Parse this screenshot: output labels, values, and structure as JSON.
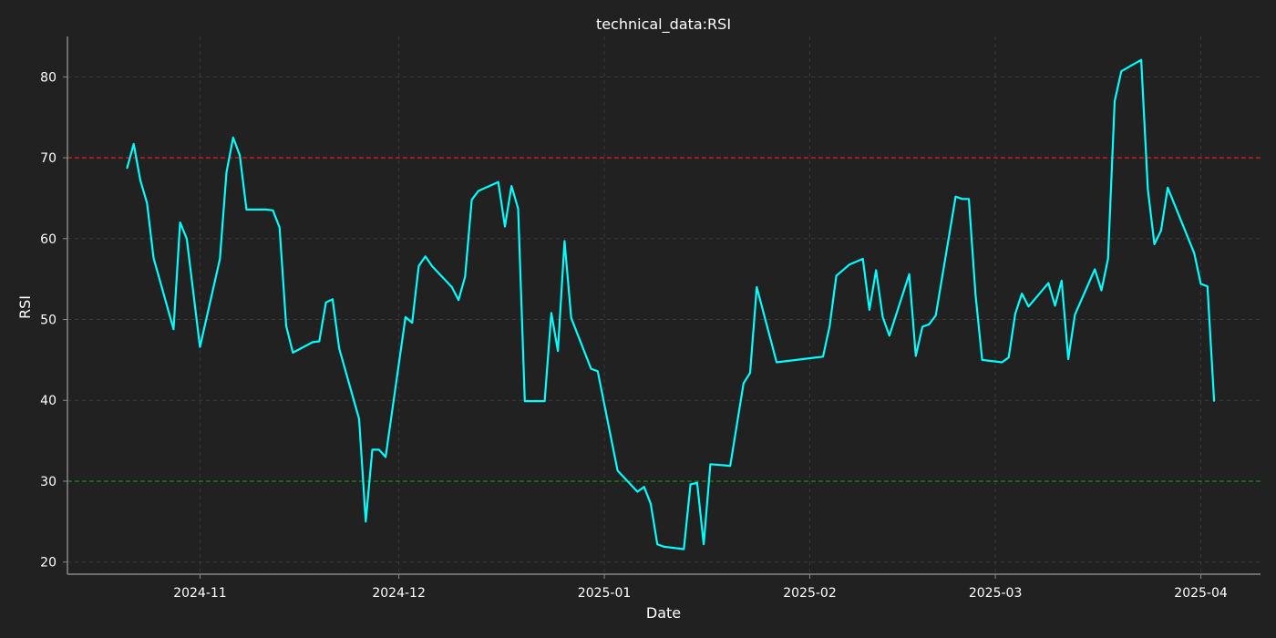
{
  "chart_data": {
    "type": "line",
    "title": "technical_data:RSI",
    "xlabel": "Date",
    "ylabel": "RSI",
    "x_ticks": [
      "2024-11",
      "2024-12",
      "2025-01",
      "2025-02",
      "2025-03",
      "2025-04"
    ],
    "y_ticks": [
      20,
      30,
      40,
      50,
      60,
      70,
      80
    ],
    "xlim": [
      "2024-10-12",
      "2025-04-10"
    ],
    "ylim": [
      18.5,
      85
    ],
    "grid": true,
    "reference_lines": [
      {
        "value": 70,
        "color": "#cc1f1f",
        "style": "dashed"
      },
      {
        "value": 30,
        "color": "#1f8a1f",
        "style": "dashed"
      }
    ],
    "series": [
      {
        "color": "#00ffff",
        "points": [
          [
            "2024-10-21",
            68.7
          ],
          [
            "2024-10-22",
            71.7
          ],
          [
            "2024-10-23",
            67.2
          ],
          [
            "2024-10-24",
            64.4
          ],
          [
            "2024-10-25",
            57.6
          ],
          [
            "2024-10-28",
            48.8
          ],
          [
            "2024-10-29",
            62.0
          ],
          [
            "2024-10-30",
            60.0
          ],
          [
            "2024-11-01",
            46.6
          ],
          [
            "2024-11-04",
            57.5
          ],
          [
            "2024-11-05",
            68.2
          ],
          [
            "2024-11-06",
            72.5
          ],
          [
            "2024-11-07",
            70.3
          ],
          [
            "2024-11-08",
            63.6
          ],
          [
            "2024-11-11",
            63.6
          ],
          [
            "2024-11-12",
            63.5
          ],
          [
            "2024-11-13",
            61.4
          ],
          [
            "2024-11-14",
            49.2
          ],
          [
            "2024-11-15",
            45.9
          ],
          [
            "2024-11-18",
            47.2
          ],
          [
            "2024-11-19",
            47.3
          ],
          [
            "2024-11-20",
            52.1
          ],
          [
            "2024-11-21",
            52.5
          ],
          [
            "2024-11-22",
            46.4
          ],
          [
            "2024-11-25",
            37.7
          ],
          [
            "2024-11-26",
            25.0
          ],
          [
            "2024-11-27",
            33.9
          ],
          [
            "2024-11-28",
            33.9
          ],
          [
            "2024-11-29",
            33.0
          ],
          [
            "2024-12-02",
            50.3
          ],
          [
            "2024-12-03",
            49.6
          ],
          [
            "2024-12-04",
            56.6
          ],
          [
            "2024-12-05",
            57.8
          ],
          [
            "2024-12-06",
            56.6
          ],
          [
            "2024-12-09",
            54.0
          ],
          [
            "2024-12-10",
            52.4
          ],
          [
            "2024-12-11",
            55.3
          ],
          [
            "2024-12-12",
            64.8
          ],
          [
            "2024-12-13",
            65.9
          ],
          [
            "2024-12-16",
            67.0
          ],
          [
            "2024-12-17",
            61.5
          ],
          [
            "2024-12-18",
            66.5
          ],
          [
            "2024-12-19",
            63.7
          ],
          [
            "2024-12-20",
            39.9
          ],
          [
            "2024-12-23",
            39.9
          ],
          [
            "2024-12-24",
            50.8
          ],
          [
            "2024-12-25",
            46.1
          ],
          [
            "2024-12-26",
            59.7
          ],
          [
            "2024-12-27",
            50.2
          ],
          [
            "2024-12-30",
            43.9
          ],
          [
            "2024-12-31",
            43.6
          ],
          [
            "2025-01-03",
            31.3
          ],
          [
            "2025-01-06",
            28.7
          ],
          [
            "2025-01-07",
            29.3
          ],
          [
            "2025-01-08",
            27.2
          ],
          [
            "2025-01-09",
            22.2
          ],
          [
            "2025-01-10",
            21.9
          ],
          [
            "2025-01-13",
            21.6
          ],
          [
            "2025-01-14",
            29.6
          ],
          [
            "2025-01-15",
            29.8
          ],
          [
            "2025-01-16",
            22.2
          ],
          [
            "2025-01-17",
            32.1
          ],
          [
            "2025-01-20",
            31.9
          ],
          [
            "2025-01-22",
            42.1
          ],
          [
            "2025-01-23",
            43.4
          ],
          [
            "2025-01-24",
            54.0
          ],
          [
            "2025-01-27",
            44.7
          ],
          [
            "2025-02-03",
            45.4
          ],
          [
            "2025-02-04",
            49.2
          ],
          [
            "2025-02-05",
            55.4
          ],
          [
            "2025-02-07",
            56.8
          ],
          [
            "2025-02-09",
            57.5
          ],
          [
            "2025-02-10",
            51.2
          ],
          [
            "2025-02-11",
            56.1
          ],
          [
            "2025-02-12",
            50.3
          ],
          [
            "2025-02-13",
            48.0
          ],
          [
            "2025-02-16",
            55.6
          ],
          [
            "2025-02-17",
            45.5
          ],
          [
            "2025-02-18",
            49.1
          ],
          [
            "2025-02-19",
            49.4
          ],
          [
            "2025-02-20",
            50.5
          ],
          [
            "2025-02-23",
            65.2
          ],
          [
            "2025-02-24",
            64.9
          ],
          [
            "2025-02-25",
            64.9
          ],
          [
            "2025-02-26",
            53.1
          ],
          [
            "2025-02-27",
            45.0
          ],
          [
            "2025-03-02",
            44.7
          ],
          [
            "2025-03-03",
            45.3
          ],
          [
            "2025-03-04",
            50.7
          ],
          [
            "2025-03-05",
            53.2
          ],
          [
            "2025-03-06",
            51.6
          ],
          [
            "2025-03-09",
            54.5
          ],
          [
            "2025-03-10",
            51.7
          ],
          [
            "2025-03-11",
            54.8
          ],
          [
            "2025-03-12",
            45.1
          ],
          [
            "2025-03-13",
            50.6
          ],
          [
            "2025-03-16",
            56.2
          ],
          [
            "2025-03-17",
            53.6
          ],
          [
            "2025-03-18",
            57.5
          ],
          [
            "2025-03-19",
            77.0
          ],
          [
            "2025-03-20",
            80.7
          ],
          [
            "2025-03-23",
            82.1
          ],
          [
            "2025-03-24",
            66.1
          ],
          [
            "2025-03-25",
            59.3
          ],
          [
            "2025-03-26",
            61.0
          ],
          [
            "2025-03-27",
            66.3
          ],
          [
            "2025-03-31",
            58.2
          ],
          [
            "2025-04-01",
            54.4
          ],
          [
            "2025-04-02",
            54.1
          ],
          [
            "2025-04-03",
            39.9
          ]
        ]
      }
    ]
  },
  "colors": {
    "background": "#212121",
    "axes": "#888888",
    "grid": "#3a3a3a",
    "text": "#ffffff"
  }
}
